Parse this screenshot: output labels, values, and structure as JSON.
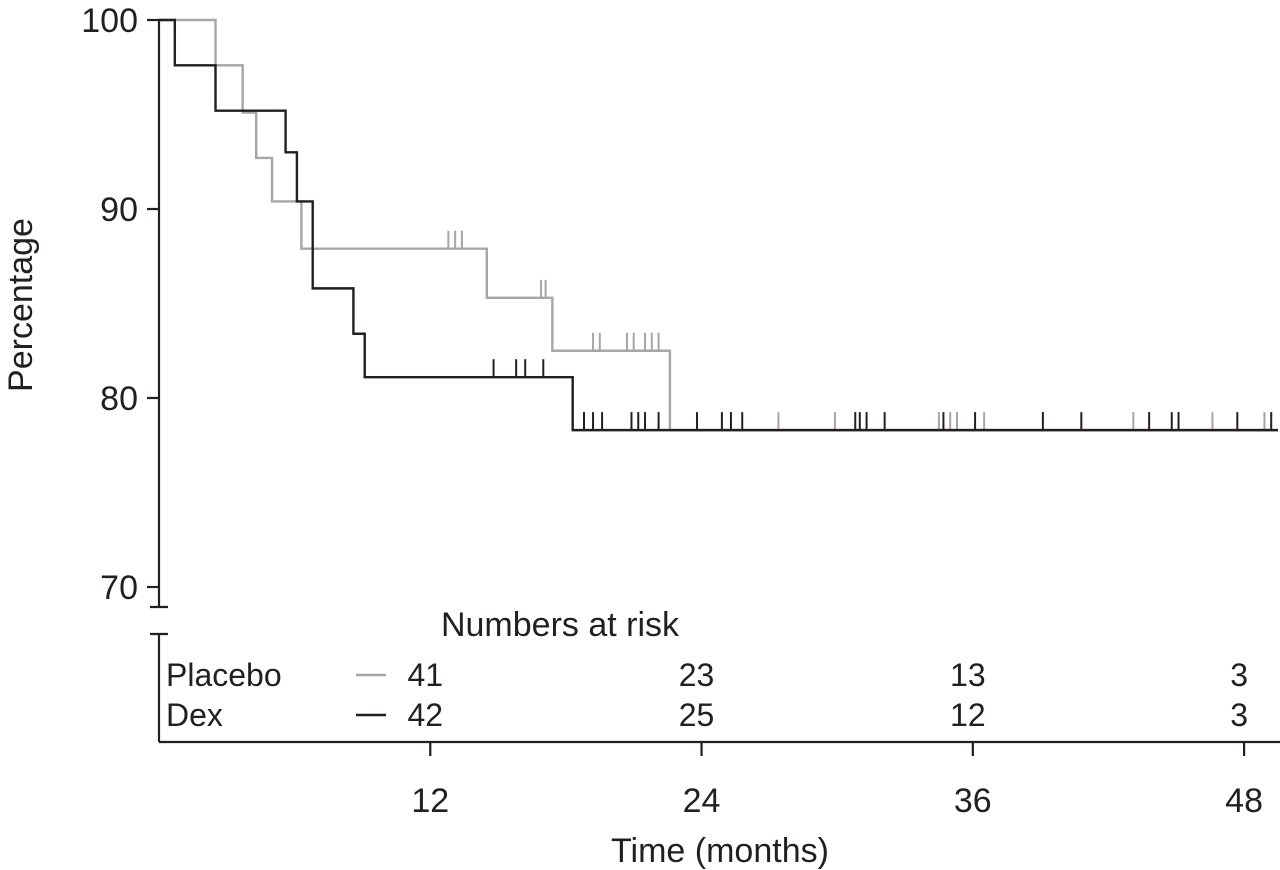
{
  "chart_data": {
    "type": "line",
    "subtype": "step (Kaplan-Meier survival)",
    "title": "",
    "xlabel": "Time (months)",
    "ylabel": "Percentage",
    "xlim": [
      0,
      49.5
    ],
    "ylim": [
      70,
      100
    ],
    "axis_break": "y-axis broken below 70",
    "y_ticks": [
      100,
      90,
      80,
      70
    ],
    "x_ticks": [
      12,
      24,
      36,
      48
    ],
    "grid": false,
    "series": [
      {
        "name": "Placebo",
        "color": "#a6a6a6",
        "steps": [
          [
            0,
            100
          ],
          [
            2.5,
            97.6
          ],
          [
            3.7,
            95.1
          ],
          [
            4.3,
            92.7
          ],
          [
            5.0,
            90.4
          ],
          [
            6.3,
            87.9
          ],
          [
            14.5,
            85.3
          ],
          [
            17.4,
            82.5
          ],
          [
            22.6,
            78.3
          ],
          [
            49.5,
            78.3
          ]
        ],
        "censor_x": [
          12.8,
          13.1,
          13.4,
          16.9,
          17.1,
          19.2,
          19.5,
          20.7,
          21.0,
          21.5,
          21.8,
          22.1,
          27.4,
          29.9,
          34.5,
          35.0,
          35.3,
          36.5,
          43.1,
          46.6,
          48.9
        ]
      },
      {
        "name": "Dex",
        "color": "#231f20",
        "steps": [
          [
            0,
            100
          ],
          [
            0.7,
            97.6
          ],
          [
            2.5,
            95.2
          ],
          [
            5.6,
            93.0
          ],
          [
            6.1,
            90.4
          ],
          [
            6.8,
            85.8
          ],
          [
            8.6,
            83.4
          ],
          [
            9.1,
            81.1
          ],
          [
            18.3,
            78.3
          ],
          [
            49.5,
            78.3
          ]
        ],
        "censor_x": [
          14.8,
          15.8,
          16.2,
          17.0,
          18.8,
          19.2,
          19.6,
          20.9,
          21.2,
          21.5,
          22.1,
          23.8,
          24.9,
          25.3,
          25.8,
          30.8,
          31.0,
          31.3,
          32.1,
          34.7,
          36.1,
          39.1,
          40.8,
          43.8,
          44.8,
          45.1,
          47.7,
          49.2
        ]
      }
    ],
    "risk_table": {
      "title": "Numbers at risk",
      "times": [
        12,
        24,
        36,
        48
      ],
      "rows": [
        {
          "label": "Placebo",
          "color": "#a6a6a6",
          "values": [
            "41",
            "23",
            "13",
            "3"
          ]
        },
        {
          "label": "Dex",
          "color": "#231f20",
          "values": [
            "42",
            "25",
            "12",
            "3"
          ]
        }
      ]
    }
  }
}
